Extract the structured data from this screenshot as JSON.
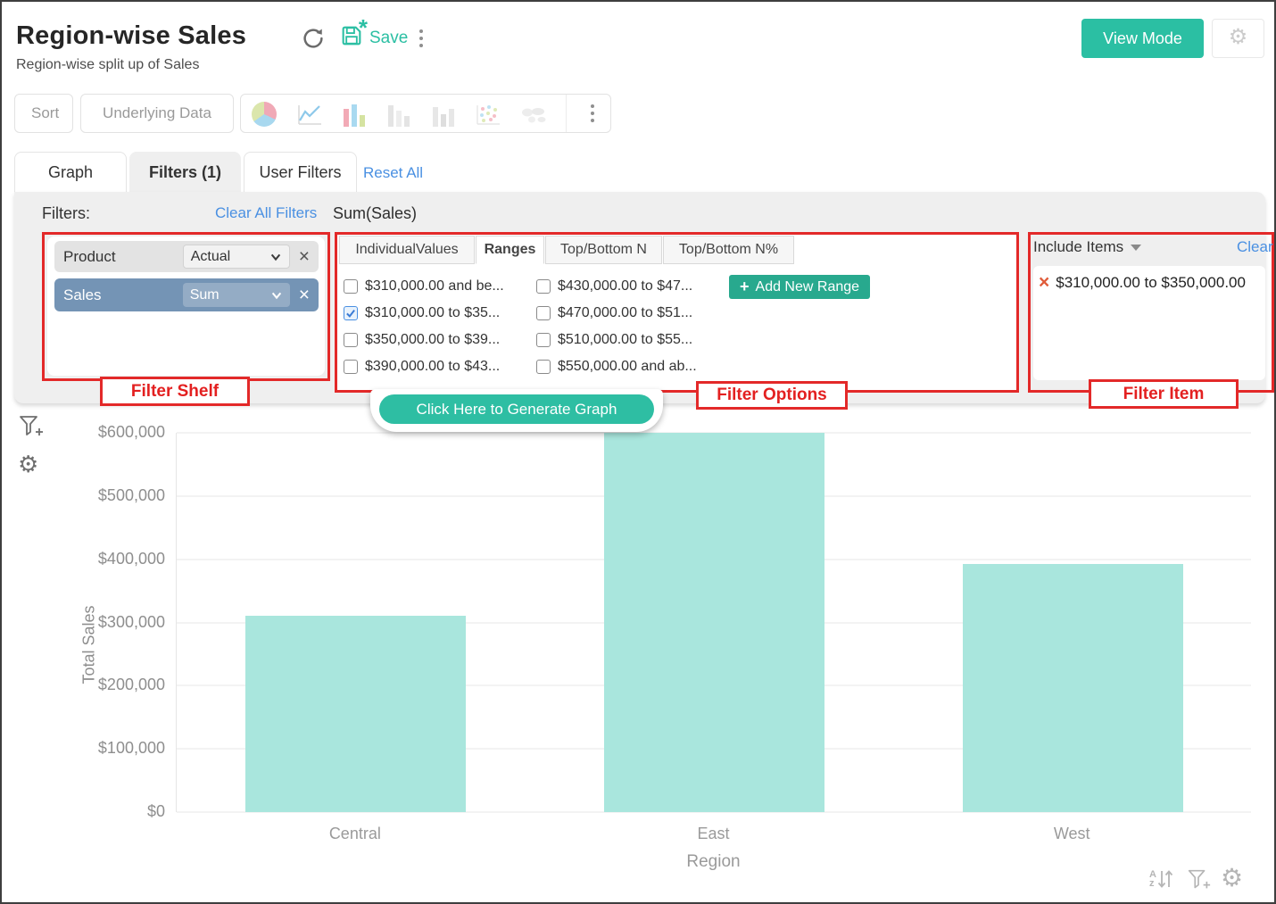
{
  "header": {
    "title": "Region-wise Sales",
    "subtitle": "Region-wise split up of Sales",
    "save_label": "Save",
    "view_mode_label": "View Mode"
  },
  "toolbar": {
    "sort_label": "Sort",
    "underlying_data_label": "Underlying Data",
    "chart_icons": [
      "pie-chart-icon",
      "line-chart-icon",
      "bar-chart-icon",
      "stacked-bar-chart-icon",
      "combo-chart-icon",
      "scatter-plot-icon",
      "map-chart-icon"
    ]
  },
  "tabs": {
    "graph": "Graph",
    "filters": "Filters  (1)",
    "user_filters": "User Filters",
    "reset_all": "Reset All"
  },
  "filters_panel": {
    "filters_label": "Filters:",
    "clear_all_label": "Clear All Filters",
    "summary": "Sum(Sales)",
    "shelf": {
      "rows": [
        {
          "field": "Product",
          "agg": "Actual"
        },
        {
          "field": "Sales",
          "agg": "Sum"
        }
      ]
    },
    "options": {
      "tabs": [
        "IndividualValues",
        "Ranges",
        "Top/Bottom N",
        "Top/Bottom N%"
      ],
      "active_tab": "Ranges",
      "ranges": [
        {
          "label": "$310,000.00 and be...",
          "checked": false
        },
        {
          "label": "$310,000.00 to $35...",
          "checked": true
        },
        {
          "label": "$350,000.00 to $39...",
          "checked": false
        },
        {
          "label": "$390,000.00 to $43...",
          "checked": false
        },
        {
          "label": "$430,000.00 to $47...",
          "checked": false
        },
        {
          "label": "$470,000.00 to $51...",
          "checked": false
        },
        {
          "label": "$510,000.00 to $55...",
          "checked": false
        },
        {
          "label": "$550,000.00 and ab...",
          "checked": false
        }
      ],
      "add_button_plus": "+",
      "add_button_label": "Add New Range"
    },
    "include": {
      "dropdown_label": "Include Items",
      "clear_label": "Clear",
      "items": [
        "$310,000.00 to $350,000.00"
      ]
    }
  },
  "annotations": {
    "shelf": "Filter Shelf",
    "options": "Filter Options",
    "item": "Filter Item"
  },
  "generate_button_label": "Click Here to Generate Graph",
  "chart_data": {
    "type": "bar",
    "categories": [
      "Central",
      "East",
      "West"
    ],
    "values": [
      310000,
      600000,
      392000
    ],
    "title": "",
    "xlabel": "Region",
    "ylabel": "Total Sales",
    "ylim": [
      0,
      600000
    ],
    "yticks": [
      "$600,000",
      "$500,000",
      "$400,000",
      "$300,000",
      "$200,000",
      "$100,000",
      "$0"
    ],
    "ytick_values": [
      600000,
      500000,
      400000,
      300000,
      200000,
      100000,
      0
    ],
    "bar_color": "#a9e6dd",
    "grid": true,
    "legend_position": "none"
  },
  "colors": {
    "accent_teal": "#2bbfa3",
    "add_range_green": "#28a98e",
    "annotation_red": "#e32929",
    "link_blue": "#4a90e2",
    "sales_pill_blue": "#7494b5",
    "panel_gray": "#efefef",
    "bar_fill": "#a9e6dd"
  },
  "footer_icons": [
    "sort-az-icon",
    "add-filter-icon",
    "settings-gear-icon"
  ]
}
